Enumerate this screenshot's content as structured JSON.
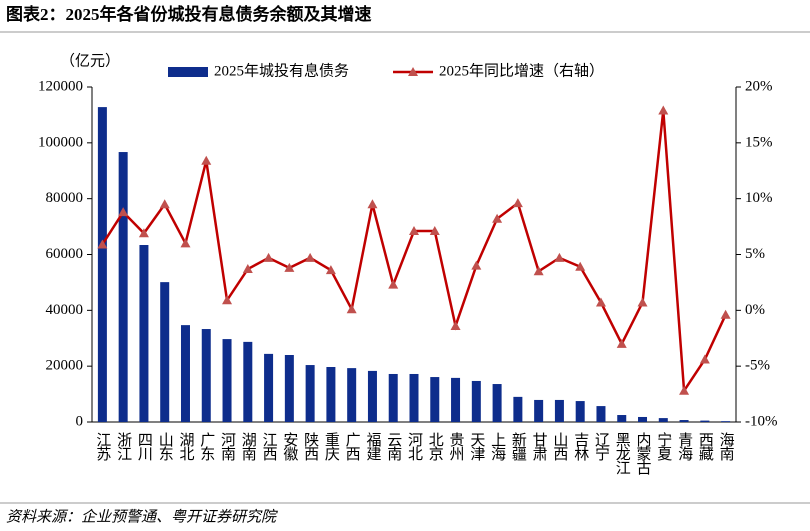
{
  "title": "图表2：2025年各省份城投有息债务余额及其增速",
  "source": "资料来源：企业预警通、粤开证券研究院",
  "chart_data": {
    "type": "bar-line",
    "y_label": "（亿元）",
    "categories": [
      "江苏",
      "浙江",
      "四川",
      "山东",
      "湖北",
      "广东",
      "河南",
      "湖南",
      "江西",
      "安徽",
      "陕西",
      "重庆",
      "广西",
      "福建",
      "云南",
      "河北",
      "北京",
      "贵州",
      "天津",
      "上海",
      "新疆",
      "甘肃",
      "山西",
      "吉林",
      "辽宁",
      "黑龙江",
      "内蒙古",
      "宁夏",
      "青海",
      "西藏",
      "海南"
    ],
    "series": [
      {
        "name": "2025年城投有息债务",
        "type": "bar",
        "color": "#0e2d8c",
        "values": [
          112800,
          96700,
          63400,
          50100,
          34700,
          33300,
          29700,
          28700,
          24400,
          24000,
          20400,
          19700,
          19300,
          18300,
          17200,
          17200,
          16100,
          15800,
          14700,
          13600,
          9000,
          7900,
          7900,
          7500,
          5700,
          2500,
          1800,
          1400,
          700,
          500,
          300
        ]
      },
      {
        "name": "2025年同比增速（右轴）",
        "type": "line",
        "axis": "y2",
        "color": "#c00000",
        "values": [
          5.9,
          8.8,
          6.9,
          9.5,
          6.0,
          13.4,
          0.9,
          3.7,
          4.7,
          3.8,
          4.7,
          3.6,
          0.1,
          9.5,
          2.3,
          7.1,
          7.1,
          -1.4,
          4.0,
          8.2,
          9.6,
          3.5,
          4.7,
          3.9,
          0.7,
          -3.0,
          0.7,
          17.9,
          -7.2,
          -4.4,
          -0.4
        ]
      }
    ],
    "ylim": [
      0,
      120000
    ],
    "yticks": [
      0,
      20000,
      40000,
      60000,
      80000,
      100000,
      120000
    ],
    "y2lim": [
      -10,
      20
    ],
    "y2ticks": [
      {
        "value": -10,
        "label": "-10%"
      },
      {
        "value": -5,
        "label": "-5%"
      },
      {
        "value": 0,
        "label": "0%"
      },
      {
        "value": 5,
        "label": "5%"
      },
      {
        "value": 10,
        "label": "10%"
      },
      {
        "value": 15,
        "label": "15%"
      },
      {
        "value": 20,
        "label": "20%"
      }
    ],
    "grid": false,
    "legend": "top"
  }
}
